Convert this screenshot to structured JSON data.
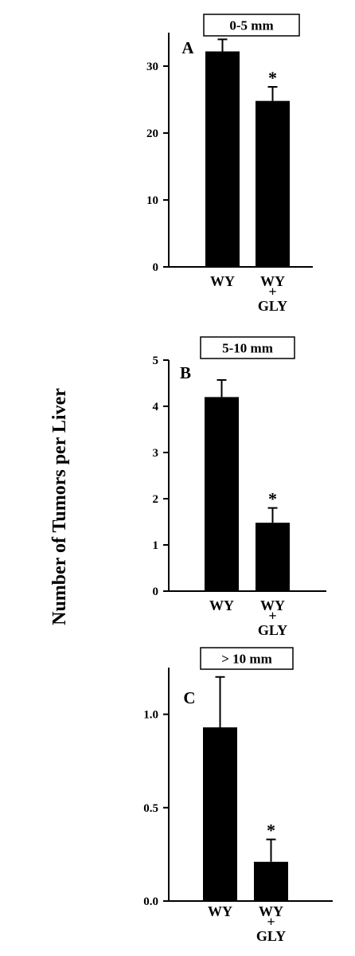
{
  "chart_data": [
    {
      "type": "bar",
      "panel": "A",
      "title": "0-5 mm",
      "categories": [
        [
          "WY"
        ],
        [
          "WY",
          "+",
          "GLY"
        ]
      ],
      "values": [
        32.2,
        24.8
      ],
      "errors": [
        1.8,
        2.1
      ],
      "significance": [
        "",
        "*"
      ],
      "ylim": [
        0,
        35
      ],
      "yticks": [
        0,
        10,
        20,
        30
      ],
      "ytick_labels": [
        "0",
        "10",
        "20",
        "30"
      ],
      "bar_color": "#000000"
    },
    {
      "type": "bar",
      "panel": "B",
      "title": "5-10 mm",
      "categories": [
        [
          "WY"
        ],
        [
          "WY",
          "+",
          "GLY"
        ]
      ],
      "values": [
        4.2,
        1.48
      ],
      "errors": [
        0.37,
        0.32
      ],
      "significance": [
        "",
        "*"
      ],
      "ylim": [
        0,
        5
      ],
      "yticks": [
        0,
        1,
        2,
        3,
        4,
        5
      ],
      "ytick_labels": [
        "0",
        "1",
        "2",
        "3",
        "4",
        "5"
      ],
      "bar_color": "#000000"
    },
    {
      "type": "bar",
      "panel": "C",
      "title": "> 10 mm",
      "categories": [
        [
          "WY"
        ],
        [
          "WY",
          "+",
          "GLY"
        ]
      ],
      "values": [
        0.93,
        0.21
      ],
      "errors": [
        0.27,
        0.12
      ],
      "significance": [
        "",
        "*"
      ],
      "ylim": [
        0,
        1.25
      ],
      "yticks": [
        0,
        0.5,
        1.0
      ],
      "ytick_labels": [
        "0.0",
        "0.5",
        "1.0"
      ],
      "bar_color": "#000000"
    }
  ],
  "shared_ylabel": "Number of Tumors per Liver"
}
